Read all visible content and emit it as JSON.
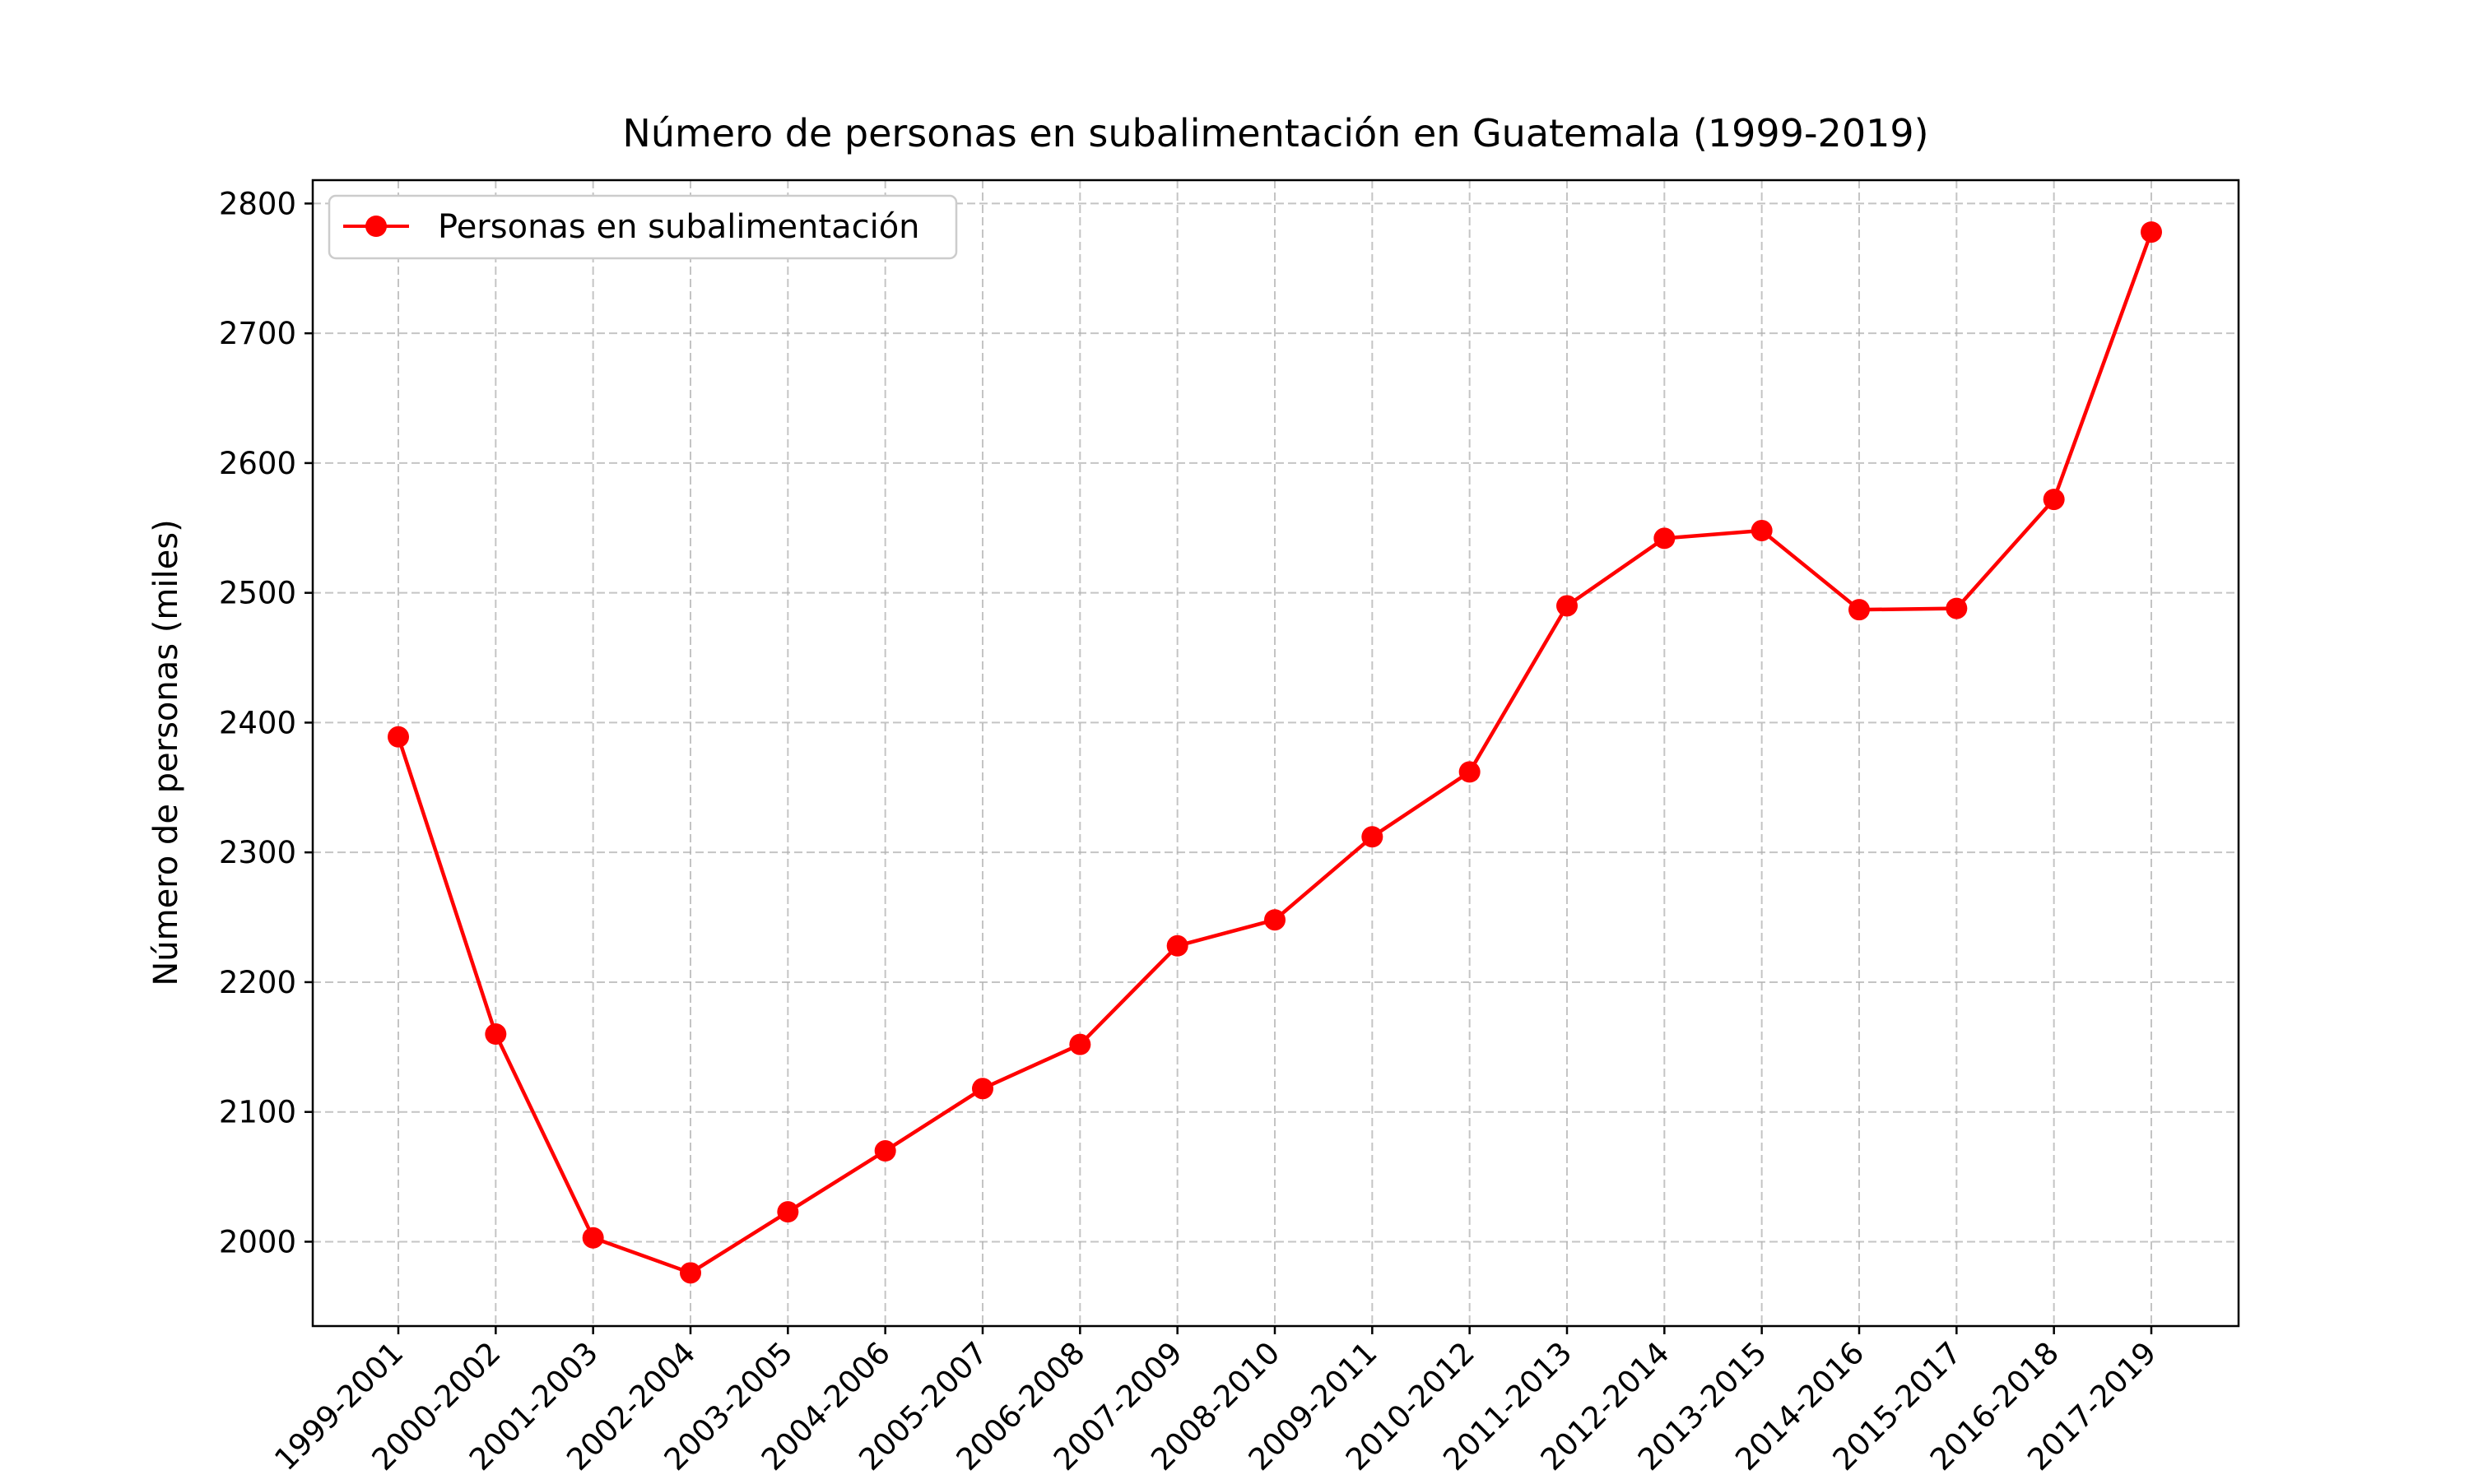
{
  "chart_data": {
    "type": "line",
    "title": "Número de personas en subalimentación en Guatemala (1999-2019)",
    "xlabel": "",
    "ylabel": "Número de personas (miles)",
    "categories": [
      "1999-2001",
      "2000-2002",
      "2001-2003",
      "2002-2004",
      "2003-2005",
      "2004-2006",
      "2005-2007",
      "2006-2008",
      "2007-2009",
      "2008-2010",
      "2009-2011",
      "2010-2012",
      "2011-2013",
      "2012-2014",
      "2013-2015",
      "2014-2016",
      "2015-2017",
      "2016-2018",
      "2017-2019"
    ],
    "series": [
      {
        "name": "Personas en subalimentación",
        "color": "#ff0000",
        "marker": "circle",
        "values": [
          2389,
          2160,
          2003,
          1976,
          2023,
          2070,
          2118,
          2152,
          2228,
          2248,
          2312,
          2362,
          2490,
          2542,
          2548,
          2487,
          2488,
          2572,
          2778
        ]
      }
    ],
    "ylim": [
      1935,
      2818
    ],
    "yticks": [
      2000,
      2100,
      2200,
      2300,
      2400,
      2500,
      2600,
      2700,
      2800
    ],
    "grid": true,
    "legend_position": "top-left"
  }
}
